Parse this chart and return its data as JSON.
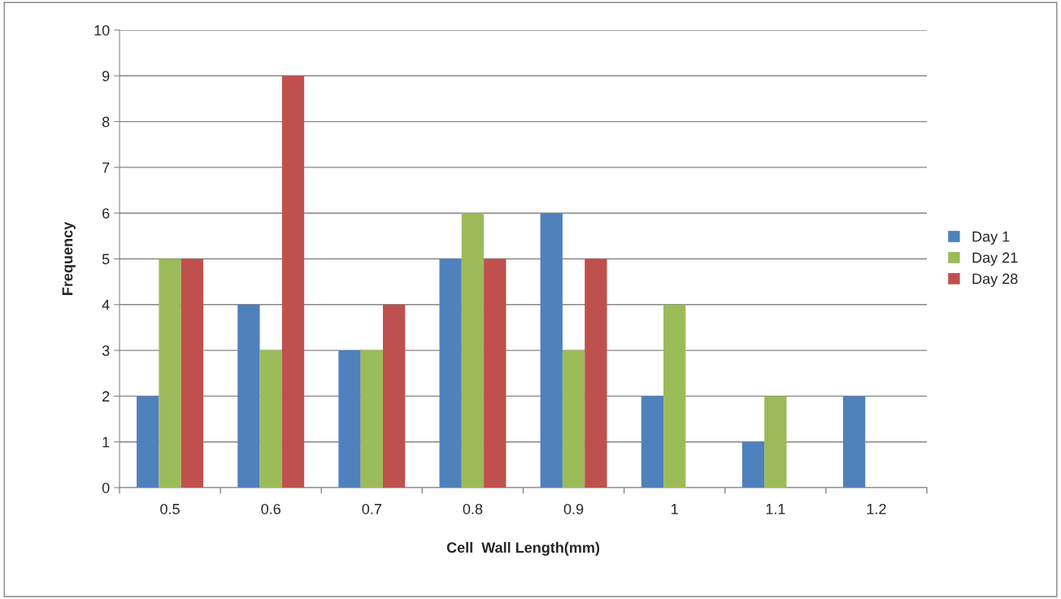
{
  "chart_data": {
    "type": "bar",
    "xlabel": "Cell  Wall Length(mm)",
    "ylabel": "Frequency",
    "categories": [
      "0.5",
      "0.6",
      "0.7",
      "0.8",
      "0.9",
      "1",
      "1.1",
      "1.2"
    ],
    "series": [
      {
        "name": "Day 1",
        "color": "#4f81bd",
        "values": [
          2,
          4,
          3,
          5,
          6,
          2,
          1,
          2
        ]
      },
      {
        "name": "Day 21",
        "color": "#9bbb59",
        "values": [
          5,
          3,
          3,
          6,
          3,
          4,
          2,
          null
        ]
      },
      {
        "name": "Day 28",
        "color": "#c0504d",
        "values": [
          5,
          9,
          4,
          5,
          5,
          null,
          null,
          null
        ]
      }
    ],
    "ylim": [
      0,
      10
    ],
    "yticks": [
      0,
      1,
      2,
      3,
      4,
      5,
      6,
      7,
      8,
      9,
      10
    ],
    "grid": "y",
    "legend": "right"
  }
}
